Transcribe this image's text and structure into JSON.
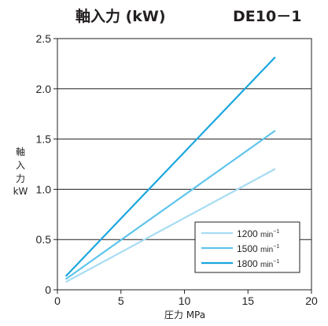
{
  "chart_data": {
    "type": "line",
    "title": "軸入力 (kW)",
    "model": "DE10－1",
    "xlabel": "圧力 MPa",
    "ylabel": [
      "軸",
      "入",
      "力",
      "kW"
    ],
    "xlim": [
      0,
      20
    ],
    "ylim": [
      0,
      2.5
    ],
    "xticks": [
      "0",
      "5",
      "10",
      "15",
      "20"
    ],
    "yticks": [
      "0",
      "0.5",
      "1.0",
      "1.5",
      "2.0",
      "2.5"
    ],
    "grid": "horizontal",
    "legend_position": "bottom-right",
    "series": [
      {
        "name": "1200",
        "unit": "min",
        "sup": "−1",
        "color": "#a7dcf3",
        "x": [
          0.7,
          17.1
        ],
        "y": [
          0.08,
          1.2
        ]
      },
      {
        "name": "1500",
        "unit": "min",
        "sup": "−1",
        "color": "#5fc4ec",
        "x": [
          0.7,
          17.1
        ],
        "y": [
          0.11,
          1.58
        ]
      },
      {
        "name": "1800",
        "unit": "min",
        "sup": "−1",
        "color": "#1aa6de",
        "x": [
          0.7,
          17.1
        ],
        "y": [
          0.14,
          2.31
        ]
      }
    ]
  }
}
